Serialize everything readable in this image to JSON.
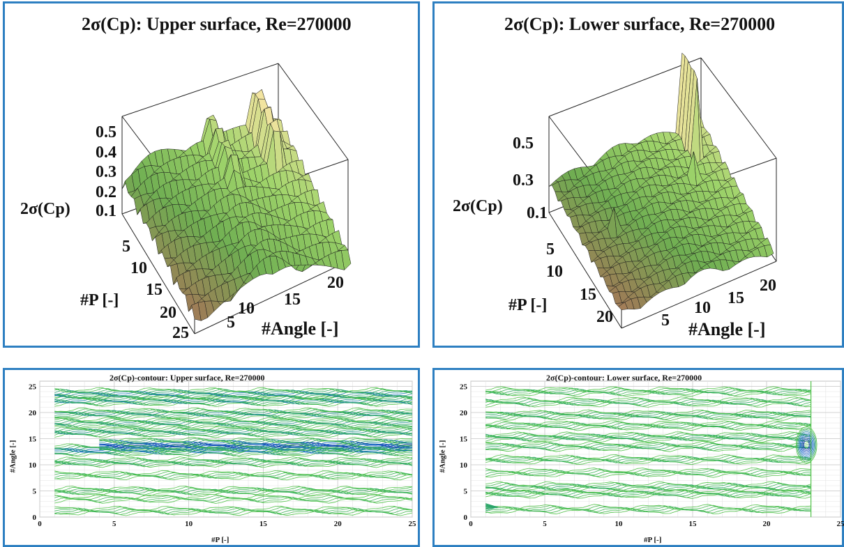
{
  "chart_data": [
    {
      "type": "surface",
      "title": "2σ(Cp): Upper surface, Re=270000",
      "xlabel": "#P [-]",
      "ylabel": "#Angle [-]",
      "zlabel": "2σ(Cp)",
      "x_ticks": [
        "5",
        "10",
        "15",
        "20",
        "25"
      ],
      "y_ticks": [
        "5",
        "10",
        "15",
        "20"
      ],
      "z_ticks": [
        "0.1",
        "0.2",
        "0.3",
        "0.4",
        "0.5"
      ],
      "xlim": [
        1,
        25
      ],
      "ylim": [
        1,
        25
      ],
      "zlim": [
        0,
        0.55
      ],
      "colormap": [
        "#d94a4a",
        "#8a7b4a",
        "#4fae3c",
        "#f0e08a"
      ]
    },
    {
      "type": "surface",
      "title": "2σ(Cp): Lower surface, Re=270000",
      "xlabel": "#P [-]",
      "ylabel": "#Angle [-]",
      "zlabel": "2σ(Cp)",
      "x_ticks": [
        "5",
        "10",
        "15",
        "20"
      ],
      "y_ticks": [
        "5",
        "10",
        "15",
        "20"
      ],
      "z_ticks": [
        "0.1",
        "0.3",
        "0.5"
      ],
      "xlim": [
        1,
        23
      ],
      "ylim": [
        1,
        25
      ],
      "zlim": [
        0,
        0.6
      ],
      "colormap": [
        "#d94a4a",
        "#8a7b4a",
        "#4fae3c",
        "#f0e08a"
      ]
    },
    {
      "type": "contour",
      "title": "2σ(Cp)-contour: Upper surface, Re=270000",
      "xlabel": "#P [-]",
      "ylabel": "#Angle [-]",
      "x_ticks": [
        0,
        5,
        10,
        15,
        20,
        25
      ],
      "y_ticks": [
        0,
        5,
        10,
        15,
        20,
        25
      ],
      "xlim": [
        0,
        25
      ],
      "ylim": [
        0,
        26
      ],
      "grid": true,
      "bands": [
        {
          "y": 1.2,
          "strength": 0.2,
          "x_from": 1,
          "x_to": 25
        },
        {
          "y": 3.5,
          "strength": 0.15,
          "x_from": 1,
          "x_to": 25
        },
        {
          "y": 5.0,
          "strength": 0.25,
          "x_from": 1,
          "x_to": 25
        },
        {
          "y": 8.0,
          "strength": 0.2,
          "x_from": 1,
          "x_to": 25
        },
        {
          "y": 10.5,
          "strength": 0.35,
          "x_from": 1,
          "x_to": 25
        },
        {
          "y": 12.8,
          "strength": 0.7,
          "x_from": 1,
          "x_to": 25
        },
        {
          "y": 13.8,
          "strength": 1.0,
          "x_from": 4,
          "x_to": 25
        },
        {
          "y": 16.3,
          "strength": 0.5,
          "x_from": 1,
          "x_to": 25
        },
        {
          "y": 18.0,
          "strength": 0.45,
          "x_from": 1,
          "x_to": 25
        },
        {
          "y": 19.8,
          "strength": 0.5,
          "x_from": 1,
          "x_to": 25
        },
        {
          "y": 22.3,
          "strength": 0.55,
          "x_from": 1,
          "x_to": 25
        },
        {
          "y": 23.6,
          "strength": 0.6,
          "x_from": 1,
          "x_to": 25
        }
      ]
    },
    {
      "type": "contour",
      "title": "2σ(Cp)-contour: Lower surface, Re=270000",
      "xlabel": "#P [-]",
      "ylabel": "#Angle [-]",
      "x_ticks": [
        0,
        5,
        10,
        15,
        20,
        25
      ],
      "y_ticks": [
        0,
        5,
        10,
        15,
        20,
        25
      ],
      "xlim": [
        0,
        25
      ],
      "ylim": [
        0,
        26
      ],
      "grid": true,
      "bands": [
        {
          "y": 1.5,
          "strength": 0.2,
          "x_from": 1,
          "x_to": 23
        },
        {
          "y": 4.5,
          "strength": 0.25,
          "x_from": 1,
          "x_to": 23
        },
        {
          "y": 5.8,
          "strength": 0.3,
          "x_from": 1,
          "x_to": 23
        },
        {
          "y": 8.5,
          "strength": 0.2,
          "x_from": 1,
          "x_to": 23
        },
        {
          "y": 11.0,
          "strength": 0.25,
          "x_from": 1,
          "x_to": 23
        },
        {
          "y": 13.5,
          "strength": 0.3,
          "x_from": 1,
          "x_to": 23
        },
        {
          "y": 15.3,
          "strength": 0.35,
          "x_from": 1,
          "x_to": 23
        },
        {
          "y": 17.5,
          "strength": 0.25,
          "x_from": 1,
          "x_to": 23
        },
        {
          "y": 19.5,
          "strength": 0.35,
          "x_from": 1,
          "x_to": 23
        },
        {
          "y": 22.0,
          "strength": 0.3,
          "x_from": 1,
          "x_to": 23
        },
        {
          "y": 24.0,
          "strength": 0.25,
          "x_from": 1,
          "x_to": 23
        }
      ]
    }
  ]
}
